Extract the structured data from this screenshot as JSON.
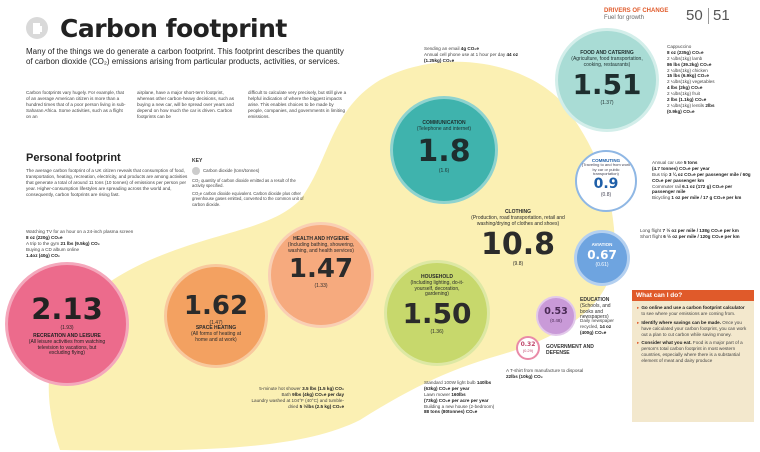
{
  "header": {
    "section": "DRIVERS OF CHANGE",
    "subsection": "Fuel for growth",
    "page_left": "50",
    "page_right": "51",
    "title": "Carbon footprint"
  },
  "intro": "Many of the things we do generate a carbon footprint. This footprint describes the quantity of carbon dioxide (CO₂) emissions arising from particular products, activities, or services.",
  "body_cols": [
    "Carbon footprints vary hugely. For example, that of an average American citizen is more than a hundred times that of a poor person living in sub-Saharan Africa. Some activities, such as a flight on an",
    "airplane, have a major short-term footprint, whereas other carbon-heavy decisions, such as buying a new car, will be spread over years and depend on how much the car is driven. Carbon footprints can be",
    "difficult to calculate very precisely, but still give a helpful indication of where the biggest impacts arise. This enables choices to be made by people, companies, and governments in limiting emissions."
  ],
  "personal": {
    "heading": "Personal footprint",
    "text": "The average carbon footprint of a UK citizen reveals that consumption of food, transportation, heating, recreation, electricity, and products are among activities that generate a total of around 11 tons (10 tonnes) of emissions per person per year. Higher-consumption lifestyles are spreading across the world and, consequently, carbon footprints are rising fast."
  },
  "key": {
    "title": "KEY",
    "swatch_label": "Carbon dioxide (tons/tonnes)",
    "line1": "CO₂ quantity of carbon dioxide emitted as a result of the activity specified.",
    "line2": "CO₂e carbon dioxide equivalent. Carbon dioxide plus other greenhouse gases emitted, converted to the common unit of carbon dioxide."
  },
  "categories": [
    {
      "value": "2.13",
      "metric": "(1.93)",
      "name": "RECREATION AND LEISURE",
      "desc": "(All leisure activities from watching television to vacations, but excluding flying)",
      "color": "#ec6b8c",
      "ring": "#f4a8bc"
    },
    {
      "value": "1.62",
      "metric": "(1.47)",
      "name": "SPACE HEATING",
      "desc": "(All forms of heating at home and at work)",
      "color": "#f3a161",
      "ring": "#f8c99e"
    },
    {
      "value": "1.47",
      "metric": "(1.33)",
      "name": "HEALTH AND HYGIENE",
      "desc": "(Including bathing, showering, washing, and health services)",
      "color": "#f6aa7e",
      "ring": "#f9cfb4"
    },
    {
      "value": "1.50",
      "metric": "(1.36)",
      "name": "HOUSEHOLD",
      "desc": "(Including lighting, do-it-yourself, decoration, gardening)",
      "color": "#c7d86c",
      "ring": "#dde8a4"
    },
    {
      "value": "10.8",
      "metric": "(9.8)",
      "name": "CLOTHING",
      "desc": "(Production, road transportation, retail and washing/drying of clothes and shoes)",
      "color": "transparent",
      "ring": "transparent"
    },
    {
      "value": "1.8",
      "metric": "(1.6)",
      "name": "COMMUNICATION",
      "desc": "(Telephone and internet)",
      "color": "#3fb3ad",
      "ring": "#8fd3cf"
    },
    {
      "value": "1.51",
      "metric": "(1.37)",
      "name": "FOOD AND CATERING",
      "desc": "(Agriculture, food transportation, cooking, restaurants)",
      "color": "#a9dcd5",
      "ring": "#d3eeea"
    },
    {
      "value": "0.9",
      "metric": "(0.8)",
      "name": "COMMUTING",
      "desc": "(Traveling to and from work by car or public transportation)",
      "color": "#ffffff",
      "ring": "#8fb7e4"
    },
    {
      "value": "0.67",
      "metric": "(0.61)",
      "name": "AVIATION",
      "desc": "",
      "color": "#6ea4e0",
      "ring": "#b4d0f0"
    },
    {
      "value": "0.53",
      "metric": "(0.48)",
      "name": "EDUCATION",
      "desc": "(Schools, and books and newspapers)",
      "color": "#c99ad8",
      "ring": "#e2c8ea"
    },
    {
      "value": "0.32",
      "metric": "(0.29)",
      "name": "GOVERNMENT AND DEFENSE",
      "desc": "",
      "color": "#ffffff",
      "ring": "#e98aa7"
    }
  ],
  "annotations": {
    "tv": [
      "Watching TV for an hour on a 24-inch plasma screen ",
      "8 oz (220g) CO₂e",
      "A trip to the gym ",
      "21 lbs (9.5kg) CO₂",
      "Buying a CD album online",
      "1.4oz (40g) CO₂"
    ],
    "email": [
      "Sending an email ",
      "4g CO₂e",
      "Annual cell phone use at 1 hour per day ",
      "44 oz (1.25kg) CO₂e"
    ],
    "food": [
      "Cappuccino",
      "8 oz (235g) CO₂e",
      "2 ¼lbs(1kg) lamb",
      "86 lbs (39.2kg) CO₂e",
      "2 ¼lbs(1kg) chicken",
      "15 lbs (6.9kg) CO₂e",
      "2 ¼lbs(1kg) vegetables",
      "4 lbs (2kg) CO₂e",
      "2 ¼lbs(1kg) fruit",
      "2 lbs (1.1kg) CO₂e",
      "2 ¼lbs(1kg) lentils ",
      "2lbs",
      "(0.9kg) CO₂e"
    ],
    "commute": [
      "Annual car use ",
      "5 tons",
      "(4.7 tonnes) CO₂e per year",
      "Bus trip ",
      "3 ¼ oz CO₂e per passenger mile / 60g CO₂e per passenger km",
      "Commuter rail ",
      "6.1 oz (172 g) CO₂e per passenger mile",
      "Bicycling ",
      "1 oz per mile / 17 g CO₂e per km"
    ],
    "flight": [
      "Long flight ",
      "7 ½ oz per mile / 138g CO₂e per km",
      "Short flight ",
      "6 ½ oz per mile / 120g CO₂e per km"
    ],
    "shower": [
      "5-minute hot shower ",
      "3.5 lbs (1.5 kg) CO₂",
      "Bath ",
      "9lbs (4kg) CO₂e per day",
      "Laundry washed at 104°F (40°C) and tumble-dried ",
      "5 ½lbs (2.5 kg) CO₂e"
    ],
    "bulb": [
      "Standard 100W light bulb ",
      "140lbs",
      "(63kg) CO₂e per year",
      "Lawn mower ",
      "160lbs",
      "(73kg) CO₂e per acre per year",
      "Building a new house (2-bedroom) ",
      "88 tons (80tonnes) CO₂e"
    ],
    "edu": [
      "Daily newspaper recycled, ",
      "14 oz",
      "(400g) CO₂e"
    ],
    "tshirt": [
      "A T-shirt from manufacture to disposal ",
      "22lbs (10kg) CO₂"
    ]
  },
  "tips": {
    "title": "What can I do?",
    "items": [
      {
        "bold": "Go online and use a carbon footprint calculator",
        "rest": " to see where your emissions are coming from."
      },
      {
        "bold": "Identify where savings can be made.",
        "rest": " Once you have calculated your carbon footprint, you can work out a plan to cut carbon while saving money."
      },
      {
        "bold": "Consider what you eat.",
        "rest": " Food is a major part of a person's total carbon footprint in most western countries, especially where there is a substantial element of meat and dairy produce"
      }
    ]
  },
  "colors": {
    "accent": "#e05a2a",
    "blob": "#fbf0b3",
    "tips_bg": "#f3e8cd"
  }
}
